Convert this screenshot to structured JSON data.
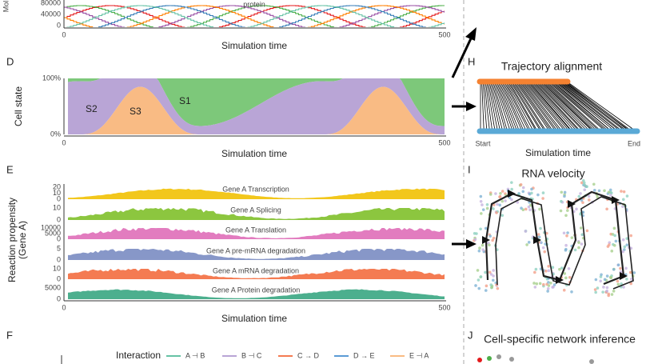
{
  "panels": {
    "C": {
      "y_label": "Mol",
      "yticks": [
        "80000",
        "40000",
        "0"
      ],
      "annotation": "protein",
      "xticks": [
        "0",
        "500"
      ],
      "x_label": "Simulation time"
    },
    "D": {
      "letter": "D",
      "y_label": "Cell state",
      "yticks": [
        "100%",
        "0%"
      ],
      "states": [
        {
          "name": "S2",
          "color": "#b9a5d6"
        },
        {
          "name": "S3",
          "color": "#f9bb84"
        },
        {
          "name": "S1",
          "color": "#7dc87a"
        }
      ],
      "xticks": [
        "0",
        "500"
      ],
      "x_label": "Simulation time"
    },
    "E": {
      "letter": "E",
      "y_label": [
        "Reaction propensity",
        "(Gene A)"
      ],
      "tracks": [
        {
          "label": "Gene A Transcription",
          "ticks": [
            "20",
            "10",
            "0"
          ],
          "color": "#f2c71c"
        },
        {
          "label": "Gene A Splicing",
          "ticks": [
            "10",
            "0"
          ],
          "color": "#8cc63f"
        },
        {
          "label": "Gene A Translation",
          "ticks": [
            "10000",
            "5000",
            "0"
          ],
          "color": "#e27cbf"
        },
        {
          "label": "Gene A pre-mRNA degradation",
          "ticks": [
            "5",
            "0"
          ],
          "color": "#8797c8"
        },
        {
          "label": "Gene A mRNA degradation",
          "ticks": [
            "10",
            "0"
          ],
          "color": "#f47b52"
        },
        {
          "label": "Gene A Protein degradation",
          "ticks": [
            "5000",
            "0"
          ],
          "color": "#4caf8e"
        }
      ],
      "xticks": [
        "0",
        "500"
      ],
      "x_label": "Simulation time"
    },
    "F": {
      "letter": "F",
      "legend_title": "Interaction",
      "items": [
        {
          "label": "A ⊣ B",
          "color": "#66c2a5"
        },
        {
          "label": "B ⊣ C",
          "color": "#b9a5d6"
        },
        {
          "label": "C → D",
          "color": "#f47b52"
        },
        {
          "label": "D → E",
          "color": "#5b9bd5"
        },
        {
          "label": "E ⊣ A",
          "color": "#f9bb84"
        }
      ]
    },
    "H": {
      "letter": "H",
      "title": "Trajectory alignment",
      "start": "Start",
      "end": "End",
      "x_label": "Simulation time"
    },
    "I": {
      "letter": "I",
      "title": "RNA velocity"
    },
    "J": {
      "letter": "J",
      "title": "Cell-specific network inference"
    }
  }
}
